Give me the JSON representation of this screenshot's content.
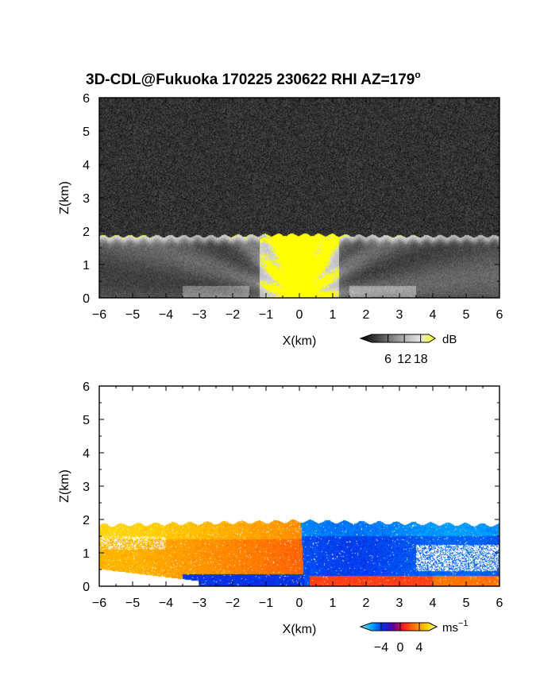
{
  "title_main": "3D-CDL@Fukuoka 170225 230622 RHI AZ=179",
  "title_degree": "o",
  "chart_data": [
    {
      "id": "reflectivity",
      "type": "heatmap",
      "quantity": "backscatter intensity",
      "xlabel": "X(km)",
      "ylabel": "Z(km)",
      "xlim": [
        -6,
        6
      ],
      "ylim": [
        0,
        6
      ],
      "x_ticks": [
        "−6",
        "−5",
        "−4",
        "−3",
        "−2",
        "−1",
        "0",
        "1",
        "2",
        "3",
        "4",
        "5",
        "6"
      ],
      "y_ticks": [
        "0",
        "1",
        "2",
        "3",
        "4",
        "5",
        "6"
      ],
      "colorbar": {
        "unit": "dB",
        "ticks": [
          "6",
          "12",
          "18"
        ],
        "range": [
          0,
          21
        ],
        "colors": [
          "#000000",
          "#3a3a3a",
          "#7a7a7a",
          "#b5b5b5",
          "#e6e6e6",
          "#ffff00"
        ]
      },
      "features": {
        "top_km": 1.9,
        "top_km_sides": 1.85,
        "saturated_color": "#ffff00",
        "noise_color": "#2a2a2a"
      }
    },
    {
      "id": "velocity",
      "type": "heatmap",
      "quantity": "Doppler velocity",
      "xlabel": "X(km)",
      "ylabel": "Z(km)",
      "xlim": [
        -6,
        6
      ],
      "ylim": [
        0,
        6
      ],
      "x_ticks": [
        "−6",
        "−5",
        "−4",
        "−3",
        "−2",
        "−1",
        "0",
        "1",
        "2",
        "3",
        "4",
        "5",
        "6"
      ],
      "y_ticks": [
        "0",
        "1",
        "2",
        "3",
        "4",
        "5",
        "6"
      ],
      "colorbar": {
        "unit": "ms",
        "unit_sup": "−1",
        "ticks": [
          "−4",
          "0",
          "4"
        ],
        "range": [
          -6,
          6
        ],
        "colors": [
          "#7ff0ff",
          "#00aaff",
          "#0033ee",
          "#5a00a0",
          "#ff2020",
          "#ff7a00",
          "#ffcc00",
          "#ffff66"
        ]
      },
      "features": {
        "top_km": 1.95,
        "left_side_sign": "positive",
        "right_side_sign": "negative"
      }
    }
  ]
}
